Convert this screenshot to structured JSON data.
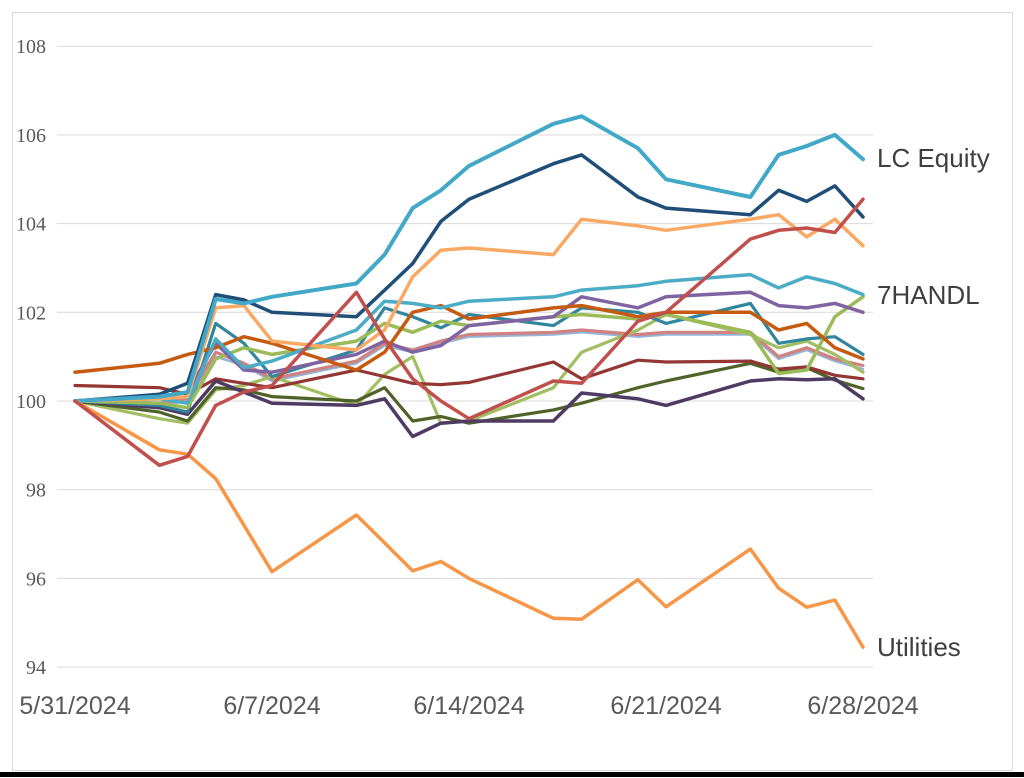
{
  "frame": {
    "background_color": "#ffffff",
    "border_color": "#d9d9d9",
    "bottom_bar_color": "#000000",
    "gridline_color": "#d9d9d9",
    "axis_text_color": "#595959",
    "label_text_color": "#3f3f3f"
  },
  "chart_data": {
    "type": "line",
    "title": "",
    "xlabel": "",
    "ylabel": "",
    "grid": "horizontal",
    "legend_position": "right-end-labels",
    "x_axis": {
      "tick_labels": [
        "5/31/2024",
        "6/7/2024",
        "6/14/2024",
        "6/21/2024",
        "6/28/2024"
      ],
      "tick_day_offsets": [
        0,
        7,
        14,
        21,
        28
      ]
    },
    "y_axis": {
      "tick_labels": [
        "94",
        "96",
        "98",
        "100",
        "102",
        "104",
        "106",
        "108"
      ],
      "tick_values": [
        94,
        96,
        98,
        100,
        102,
        104,
        106,
        108
      ],
      "range": [
        94,
        108
      ]
    },
    "dates": [
      "5/31/2024",
      "6/3/2024",
      "6/4/2024",
      "6/5/2024",
      "6/6/2024",
      "6/7/2024",
      "6/10/2024",
      "6/11/2024",
      "6/12/2024",
      "6/13/2024",
      "6/14/2024",
      "6/17/2024",
      "6/18/2024",
      "6/20/2024",
      "6/21/2024",
      "6/24/2024",
      "6/25/2024",
      "6/26/2024",
      "6/27/2024",
      "6/28/2024"
    ],
    "day_offsets": [
      0,
      3,
      4,
      5,
      6,
      7,
      10,
      11,
      12,
      13,
      14,
      17,
      18,
      20,
      21,
      24,
      25,
      26,
      27,
      28
    ],
    "end_labels": {
      "lc_equity": "LC Equity",
      "handl": "7HANDL",
      "utilities": "Utilities"
    },
    "series": [
      {
        "name": "cornflower-blue",
        "color": "#95B3D7",
        "width": 2.5,
        "values": [
          100,
          99.9,
          100,
          101,
          100.8,
          100.45,
          100.85,
          101.25,
          101.1,
          101.3,
          101.45,
          101.5,
          101.55,
          101.45,
          101.5,
          101.5,
          100.95,
          101.15,
          100.9,
          100.72
        ]
      },
      {
        "name": "salmon",
        "color": "#D08280",
        "width": 3.2,
        "values": [
          100,
          99.95,
          100.05,
          101.1,
          100.85,
          100.5,
          100.9,
          101.3,
          101.15,
          101.35,
          101.5,
          101.55,
          101.6,
          101.5,
          101.55,
          101.55,
          101,
          101.2,
          100.95,
          100.8
        ]
      },
      {
        "name": "light-green-b",
        "color": "#A2BE63",
        "width": 3.2,
        "values": [
          100,
          99.6,
          99.5,
          100.25,
          100.35,
          100.55,
          99.9,
          100.6,
          101,
          99.5,
          99.55,
          100.3,
          101.1,
          101.6,
          101.95,
          101.5,
          101.2,
          101.35,
          101.05,
          100.65
        ]
      },
      {
        "name": "dark-olive",
        "color": "#4F6228",
        "width": 3.2,
        "values": [
          100,
          99.75,
          99.55,
          100.3,
          100.25,
          100.1,
          100,
          100.3,
          99.55,
          99.65,
          99.5,
          99.8,
          99.95,
          100.3,
          100.45,
          100.85,
          100.65,
          100.75,
          100.47,
          100.28
        ]
      },
      {
        "name": "maroon",
        "color": "#943634",
        "width": 3.2,
        "values": [
          100.35,
          100.3,
          100.15,
          100.5,
          100.4,
          100.3,
          100.7,
          100.55,
          100.4,
          100.37,
          100.42,
          100.88,
          100.5,
          100.92,
          100.88,
          100.9,
          100.72,
          100.77,
          100.58,
          100.5
        ]
      },
      {
        "name": "dark-purple",
        "color": "#4D3B62",
        "width": 3.5,
        "values": [
          100,
          99.85,
          99.7,
          100.45,
          100.2,
          99.95,
          99.9,
          100.05,
          99.2,
          99.5,
          99.55,
          99.55,
          100.18,
          100.05,
          99.9,
          100.45,
          100.5,
          100.48,
          100.5,
          100.05
        ]
      },
      {
        "name": "dark-teal",
        "color": "#31859C",
        "width": 3.2,
        "values": [
          100,
          99.9,
          99.75,
          101.75,
          101.3,
          100.55,
          101.15,
          102.1,
          101.9,
          101.65,
          101.95,
          101.7,
          102.1,
          102,
          101.75,
          102.2,
          101.3,
          101.4,
          101.45,
          101.05
        ]
      },
      {
        "name": "light-green-a",
        "color": "#9BBB59",
        "width": 3.5,
        "values": [
          100,
          99.95,
          99.85,
          100.95,
          101.2,
          101.05,
          101.35,
          101.75,
          101.55,
          101.8,
          101.7,
          101.9,
          101.95,
          101.85,
          101.95,
          101.55,
          100.62,
          100.7,
          101.9,
          102.35
        ]
      },
      {
        "name": "medium-purple",
        "color": "#8064A2",
        "width": 3.5,
        "values": [
          100,
          100.1,
          100.2,
          101.3,
          100.7,
          100.65,
          101.05,
          101.35,
          101.1,
          101.25,
          101.7,
          101.9,
          102.35,
          102.1,
          102.35,
          102.45,
          102.15,
          102.1,
          102.2,
          102
        ]
      },
      {
        "name": "rust-orange",
        "color": "#C55A11",
        "width": 3.5,
        "values": [
          100.65,
          100.85,
          101.05,
          101.2,
          101.45,
          101.3,
          100.7,
          101.1,
          102,
          102.15,
          101.85,
          102.1,
          102.15,
          101.9,
          102,
          102,
          101.6,
          101.75,
          101.2,
          100.95
        ]
      },
      {
        "name": "handl",
        "color": "#4BACC6",
        "width": 3.5,
        "end_label": "7HANDL",
        "values": [
          100,
          100.05,
          99.95,
          101.4,
          100.75,
          100.9,
          101.6,
          102.25,
          102.2,
          102.1,
          102.25,
          102.35,
          102.5,
          102.6,
          102.7,
          102.85,
          102.55,
          102.8,
          102.65,
          102.4
        ]
      },
      {
        "name": "light-orange",
        "color": "#F9A963",
        "width": 3.5,
        "values": [
          100,
          100.05,
          100.1,
          102.1,
          102.15,
          101.35,
          101.15,
          101.6,
          102.8,
          103.4,
          103.45,
          103.3,
          104.1,
          103.95,
          103.85,
          104.1,
          104.2,
          103.7,
          104.1,
          103.5
        ]
      },
      {
        "name": "navy",
        "color": "#1F4E79",
        "width": 3.5,
        "values": [
          100,
          100.15,
          100.4,
          102.4,
          102.28,
          102,
          101.9,
          102.5,
          103.1,
          104.05,
          104.55,
          105.35,
          105.55,
          104.6,
          104.35,
          104.2,
          104.75,
          104.5,
          104.85,
          104.15
        ]
      },
      {
        "name": "lc_equity",
        "color": "#41A8C8",
        "width": 4,
        "end_label": "LC Equity",
        "values": [
          100,
          100.1,
          100.2,
          102.3,
          102.2,
          102.35,
          102.65,
          103.3,
          104.35,
          104.75,
          105.3,
          106.25,
          106.42,
          105.7,
          105,
          104.6,
          105.55,
          105.75,
          106,
          105.45
        ]
      },
      {
        "name": "utilities",
        "color": "#F79646",
        "width": 3.5,
        "end_label": "Utilities",
        "values": [
          100,
          98.9,
          98.8,
          98.25,
          97.2,
          96.15,
          97.43,
          96.8,
          96.17,
          96.38,
          96,
          95.1,
          95.08,
          95.97,
          95.36,
          96.66,
          95.78,
          95.35,
          95.51,
          94.45
        ]
      },
      {
        "name": "brick-red",
        "color": "#C0504D",
        "width": 3.5,
        "values": [
          100,
          98.55,
          98.75,
          99.9,
          100.2,
          100.35,
          102.45,
          101.4,
          100.5,
          100,
          99.6,
          100.45,
          100.4,
          101.8,
          102,
          103.65,
          103.85,
          103.9,
          103.8,
          104.55
        ]
      }
    ]
  }
}
